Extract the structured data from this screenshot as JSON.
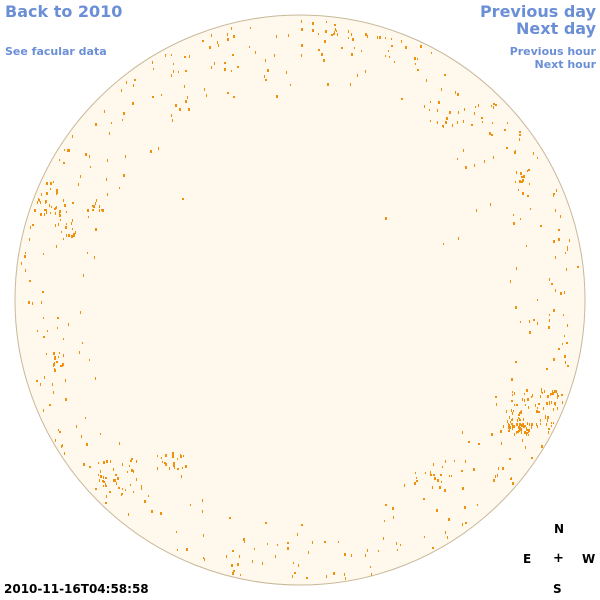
{
  "nav": {
    "back_label": "Back to 2010",
    "facular_label": "See facular data",
    "previous_day_label": "Previous day",
    "next_day_label": "Next day",
    "previous_hour_label": "Previous hour",
    "next_hour_label": "Next hour"
  },
  "compass": {
    "north": "N",
    "east": "E",
    "center": "+",
    "west": "W",
    "south": "S"
  },
  "timestamp": "2010-11-16T04:58:58",
  "colors": {
    "link": "#6b8fd6",
    "disk_fill": "#fff8ec",
    "disk_border": "#c8b89a",
    "facula": "#f0900f"
  }
}
